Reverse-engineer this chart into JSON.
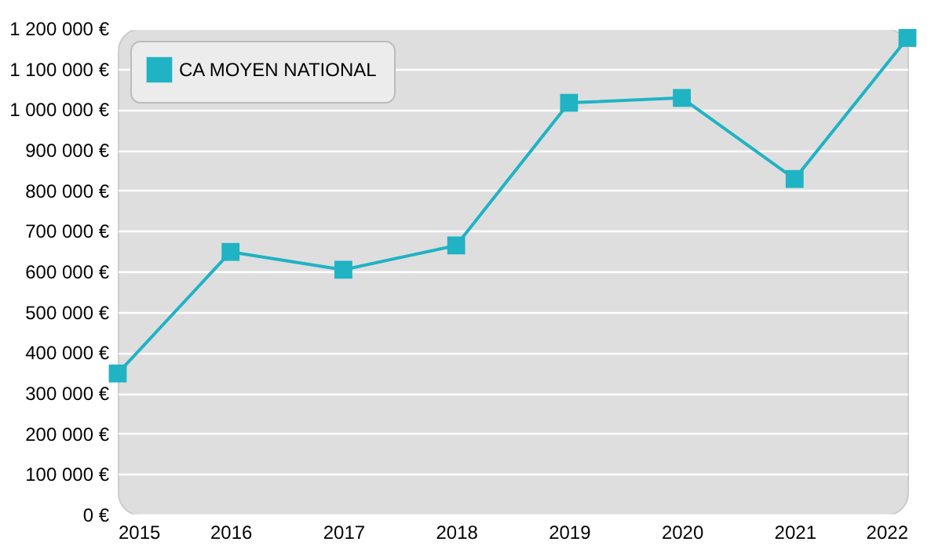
{
  "chart_data": {
    "type": "line",
    "x": [
      2015,
      2016,
      2017,
      2018,
      2019,
      2020,
      2021,
      2022
    ],
    "series": [
      {
        "name": "CA MOYEN NATIONAL",
        "color": "#1fb3c4",
        "values": [
          348000,
          648000,
          604000,
          664000,
          1016000,
          1028000,
          828000,
          1176000
        ]
      }
    ],
    "xlim": [
      2015,
      2022
    ],
    "xticks": [
      2015,
      2016,
      2017,
      2018,
      2019,
      2020,
      2021,
      2022
    ],
    "ylim": [
      0,
      1200000
    ],
    "yticks": [
      {
        "value": 0,
        "label": "0 €"
      },
      {
        "value": 100000,
        "label": "100 000 €"
      },
      {
        "value": 200000,
        "label": "200 000 €"
      },
      {
        "value": 300000,
        "label": "300 000 €"
      },
      {
        "value": 400000,
        "label": "400 000 €"
      },
      {
        "value": 500000,
        "label": "500 000 €"
      },
      {
        "value": 600000,
        "label": "600 000 €"
      },
      {
        "value": 700000,
        "label": "700 000 €"
      },
      {
        "value": 800000,
        "label": "800 000 €"
      },
      {
        "value": 900000,
        "label": "900 000 €"
      },
      {
        "value": 1000000,
        "label": "1 000 000 €"
      },
      {
        "value": 1100000,
        "label": "1 100 000 €"
      },
      {
        "value": 1200000,
        "label": "1 200 000 €"
      }
    ],
    "grid": "y",
    "legend": "top left",
    "marker": "square",
    "line_style": "solid"
  }
}
